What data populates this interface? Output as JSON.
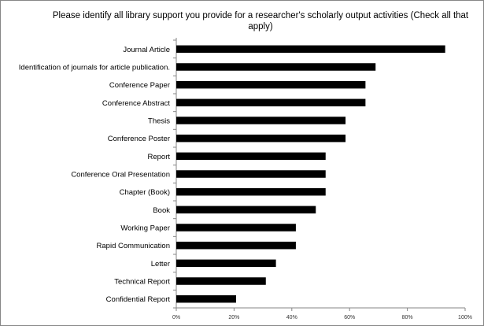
{
  "chart_data": {
    "type": "bar",
    "orientation": "horizontal",
    "title": "Please identify all library support you provide for a researcher's scholarly output activities (Check all that apply)",
    "categories": [
      "Journal Article",
      "Identification of journals for article publication.",
      "Conference Paper",
      "Conference Abstract",
      "Thesis",
      "Conference Poster",
      "Report",
      "Conference Oral Presentation",
      "Chapter (Book)",
      "Book",
      "Working Paper",
      "Rapid Communication",
      "Letter",
      "Technical Report",
      "Confidential Report"
    ],
    "values": [
      93.1,
      69.0,
      65.5,
      65.5,
      58.6,
      58.6,
      51.7,
      51.7,
      51.7,
      48.3,
      41.4,
      41.4,
      34.5,
      31.0,
      20.7
    ],
    "xlim": [
      0,
      100
    ],
    "xticks": [
      "0%",
      "20%",
      "40%",
      "60%",
      "80%",
      "100%"
    ],
    "grid": false,
    "legend": "none",
    "bar_color": "#000000"
  }
}
